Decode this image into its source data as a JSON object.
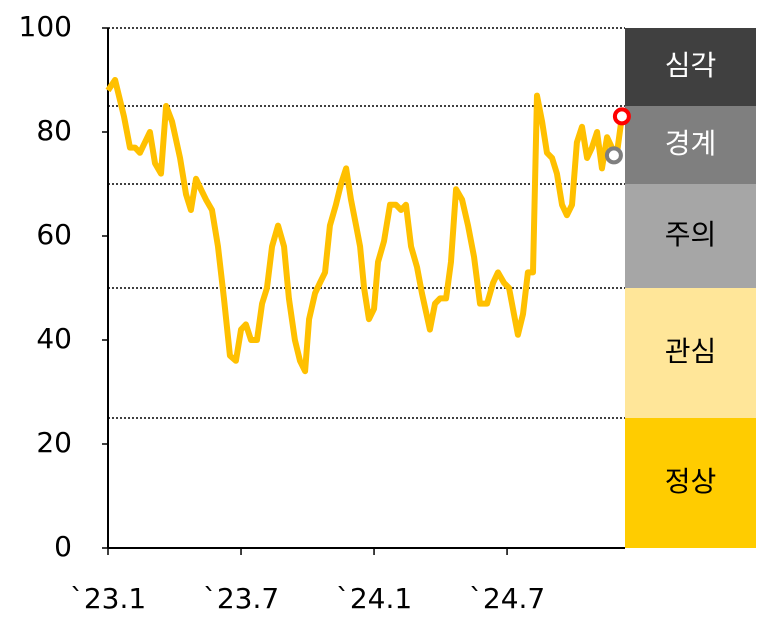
{
  "chart_data": {
    "type": "line",
    "x": [
      0,
      0.32,
      0.72,
      0.99,
      1.22,
      1.44,
      1.89,
      2.12,
      2.39,
      2.62,
      2.89,
      3.25,
      3.52,
      3.74,
      3.97,
      4.19,
      4.42,
      4.69,
      4.96,
      5.23,
      5.5,
      5.77,
      6,
      6.22,
      6.45,
      6.72,
      6.95,
      7.17,
      7.4,
      7.67,
      7.94,
      8.16,
      8.43,
      8.66,
      8.89,
      9.07,
      9.34,
      9.56,
      9.79,
      10.01,
      10.28,
      10.51,
      10.74,
      10.96,
      11.19,
      11.37,
      11.55,
      11.77,
      12,
      12.18,
      12.45,
      12.72,
      12.99,
      13.22,
      13.44,
      13.67,
      13.94,
      14.16,
      14.52,
      14.75,
      14.98,
      15.25,
      15.47,
      15.7,
      15.97,
      16.24,
      16.51,
      16.78,
      17.1,
      17.37,
      17.59,
      17.86,
      18.09,
      18.31,
      18.49,
      18.72,
      18.94,
      19.17,
      19.35,
      19.58,
      19.8,
      20.03,
      20.25,
      20.48,
      20.7,
      20.93,
      21.15,
      21.38,
      21.61,
      21.83,
      22.06,
      22.28,
      22.51,
      22.73,
      22.96,
      23.18
    ],
    "series": [
      {
        "color": "#ffc000",
        "values": [
          88,
          90,
          83,
          77,
          77,
          76,
          80,
          74,
          72,
          85,
          82,
          75,
          68,
          65,
          71,
          69,
          67,
          65,
          58,
          48,
          37,
          36,
          42,
          43,
          40,
          40,
          47,
          50,
          58,
          62,
          58,
          48,
          40,
          36,
          34,
          44,
          49,
          51,
          53,
          62,
          66,
          70,
          73,
          67,
          62,
          58,
          50,
          44,
          46,
          55,
          59,
          66,
          66,
          65,
          66,
          58,
          54,
          49,
          42,
          47,
          48,
          48,
          55,
          69,
          67,
          62,
          56,
          47,
          47,
          51,
          53,
          51,
          50,
          45,
          41,
          45,
          53,
          53,
          87,
          82,
          76,
          75,
          72,
          66,
          64,
          66,
          78,
          81,
          75,
          77,
          80,
          73,
          79,
          77,
          76,
          83
        ]
      }
    ],
    "markers": [
      {
        "x": 23.18,
        "y": 83,
        "color": "#ff0000"
      },
      {
        "x": 22.82,
        "y": 75.5,
        "color": "#7f7f7f"
      }
    ],
    "bands": [
      {
        "name": "정상",
        "from": 0,
        "to": 25,
        "color": "#ffcc00",
        "text_color": "#000000"
      },
      {
        "name": "관심",
        "from": 25,
        "to": 50,
        "color": "#ffe699",
        "text_color": "#000000"
      },
      {
        "name": "주의",
        "from": 50,
        "to": 70,
        "color": "#a6a6a6",
        "text_color": "#000000"
      },
      {
        "name": "경계",
        "from": 70,
        "to": 85,
        "color": "#7f7f7f",
        "text_color": "#ffffff"
      },
      {
        "name": "심각",
        "from": 85,
        "to": 100,
        "color": "#404040",
        "text_color": "#ffffff"
      }
    ],
    "xlim": [
      0,
      23.32
    ],
    "xticks": [
      {
        "value": 0,
        "label": "`23.1"
      },
      {
        "value": 6,
        "label": "`23.7"
      },
      {
        "value": 12,
        "label": "`24.1"
      },
      {
        "value": 18,
        "label": "`24.7"
      }
    ],
    "ylim": [
      0,
      100
    ],
    "yticks": [
      0,
      20,
      40,
      60,
      80,
      100
    ]
  }
}
